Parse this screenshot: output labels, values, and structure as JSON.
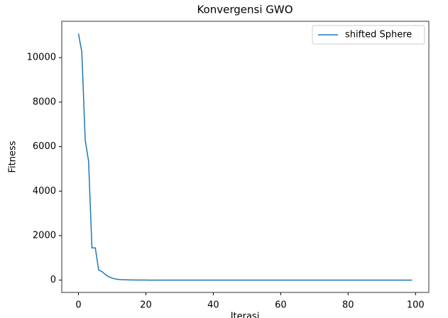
{
  "chart_data": {
    "type": "line",
    "title": "Konvergensi GWO",
    "x_label": "Iterasi",
    "y_label": "Fitness",
    "x": [
      0,
      1,
      2,
      3,
      4,
      5,
      6,
      7,
      8,
      9,
      10,
      11,
      12,
      13,
      14,
      15,
      16,
      17,
      18,
      19,
      20,
      21,
      22,
      23,
      24,
      25,
      26,
      27,
      28,
      29,
      30,
      31,
      32,
      33,
      34,
      35,
      36,
      37,
      38,
      39,
      40,
      41,
      42,
      43,
      44,
      45,
      46,
      47,
      48,
      49,
      50,
      51,
      52,
      53,
      54,
      55,
      56,
      57,
      58,
      59,
      60,
      61,
      62,
      63,
      64,
      65,
      66,
      67,
      68,
      69,
      70,
      71,
      72,
      73,
      74,
      75,
      76,
      77,
      78,
      79,
      80,
      81,
      82,
      83,
      84,
      85,
      86,
      87,
      88,
      89,
      90,
      91,
      92,
      93,
      94,
      95,
      96,
      97,
      98,
      99
    ],
    "series": [
      {
        "name": "shifted Sphere",
        "color": "#1f77b4",
        "values": [
          11080,
          10250,
          6300,
          5350,
          1450,
          1450,
          450,
          380,
          250,
          150,
          90,
          50,
          30,
          20,
          15,
          10,
          8,
          6,
          5,
          4,
          3,
          2,
          2,
          1,
          1,
          1,
          1,
          0,
          0,
          0,
          0,
          0,
          0,
          0,
          0,
          0,
          0,
          0,
          0,
          0,
          0,
          0,
          0,
          0,
          0,
          0,
          0,
          0,
          0,
          0,
          0,
          0,
          0,
          0,
          0,
          0,
          0,
          0,
          0,
          0,
          0,
          0,
          0,
          0,
          0,
          0,
          0,
          0,
          0,
          0,
          0,
          0,
          0,
          0,
          0,
          0,
          0,
          0,
          0,
          0,
          0,
          0,
          0,
          0,
          0,
          0,
          0,
          0,
          0,
          0,
          0,
          0,
          0,
          0,
          0,
          0,
          0,
          0,
          0,
          0
        ]
      }
    ],
    "xlim": [
      -4.95,
      103.95
    ],
    "ylim": [
      -554,
      11634
    ],
    "xticks": [
      0,
      20,
      40,
      60,
      80,
      100
    ],
    "yticks": [
      0,
      2000,
      4000,
      6000,
      8000,
      10000
    ],
    "legend": "upper right",
    "grid": false
  }
}
